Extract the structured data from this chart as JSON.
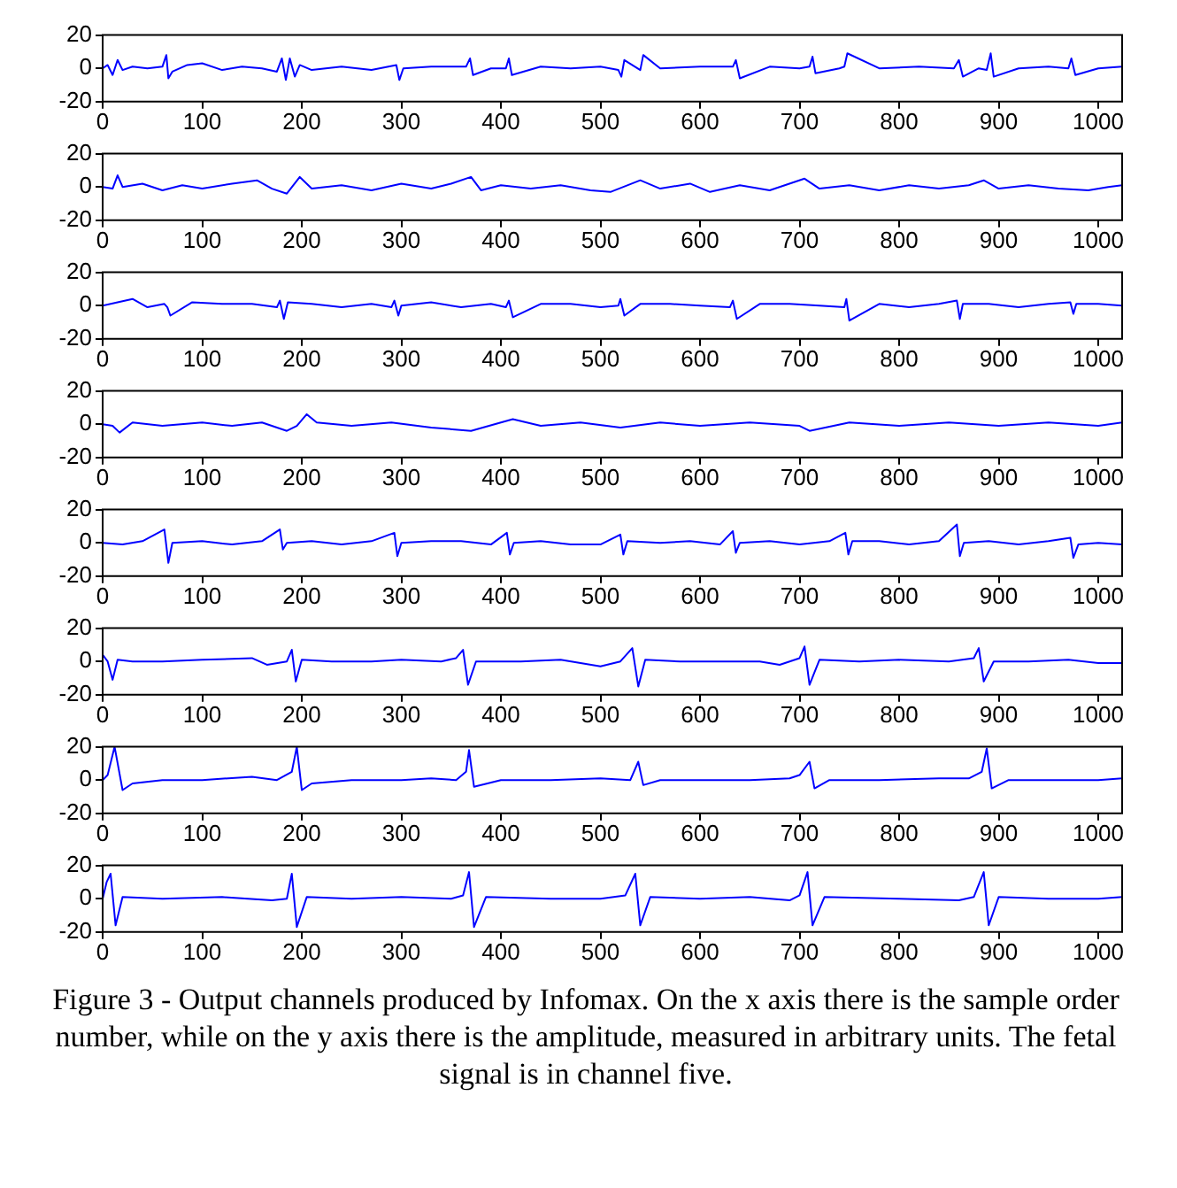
{
  "chart_data": [
    {
      "type": "line",
      "x": [
        0,
        5,
        10,
        15,
        20,
        30,
        45,
        60,
        64,
        66,
        70,
        85,
        100,
        120,
        140,
        160,
        175,
        180,
        184,
        188,
        193,
        198,
        210,
        240,
        270,
        295,
        298,
        302,
        330,
        365,
        369,
        372,
        390,
        405,
        408,
        411,
        440,
        470,
        500,
        518,
        521,
        524,
        540,
        543,
        560,
        600,
        633,
        636,
        640,
        670,
        700,
        710,
        713,
        716,
        740,
        745,
        748,
        780,
        820,
        855,
        860,
        864,
        880,
        888,
        892,
        895,
        920,
        950,
        970,
        973,
        977,
        1000,
        1024
      ],
      "values": [
        0,
        2,
        -4,
        5,
        -1,
        1,
        0,
        1,
        8,
        -6,
        -2,
        2,
        3,
        -1,
        1,
        0,
        -2,
        6,
        -7,
        6,
        -5,
        2,
        -1,
        1,
        -1,
        2,
        -7,
        0,
        1,
        1,
        6,
        -4,
        0,
        0,
        6,
        -4,
        1,
        0,
        1,
        -1,
        -5,
        5,
        -1,
        8,
        0,
        1,
        1,
        5,
        -6,
        1,
        0,
        1,
        7,
        -3,
        0,
        1,
        9,
        0,
        1,
        0,
        5,
        -5,
        0,
        -1,
        9,
        -5,
        0,
        1,
        0,
        6,
        -4,
        0,
        1
      ],
      "color": "#0000ff",
      "xlim": [
        0,
        1024
      ],
      "ylim": [
        -20,
        20
      ],
      "xticks": [
        0,
        100,
        200,
        300,
        400,
        500,
        600,
        700,
        800,
        900,
        1000
      ],
      "yticks": [
        -20,
        0,
        20
      ],
      "grid": false
    },
    {
      "type": "line",
      "x": [
        0,
        10,
        15,
        20,
        40,
        60,
        80,
        100,
        130,
        155,
        170,
        185,
        198,
        210,
        240,
        270,
        300,
        330,
        350,
        370,
        380,
        400,
        430,
        460,
        490,
        510,
        540,
        560,
        590,
        610,
        640,
        670,
        705,
        720,
        750,
        780,
        810,
        840,
        870,
        885,
        900,
        930,
        960,
        990,
        1010,
        1024
      ],
      "values": [
        0,
        -1,
        7,
        0,
        2,
        -2,
        1,
        -1,
        2,
        4,
        -1,
        -4,
        6,
        -1,
        1,
        -2,
        2,
        -1,
        2,
        6,
        -2,
        1,
        -1,
        1,
        -2,
        -3,
        4,
        -1,
        2,
        -3,
        1,
        -2,
        5,
        -1,
        1,
        -2,
        1,
        -1,
        1,
        4,
        -1,
        1,
        -1,
        -2,
        0,
        1
      ],
      "color": "#0000ff",
      "xlim": [
        0,
        1024
      ],
      "ylim": [
        -20,
        20
      ],
      "xticks": [
        0,
        100,
        200,
        300,
        400,
        500,
        600,
        700,
        800,
        900,
        1000
      ],
      "yticks": [
        -20,
        0,
        20
      ],
      "grid": false
    },
    {
      "type": "line",
      "x": [
        0,
        15,
        30,
        45,
        62,
        65,
        68,
        90,
        120,
        150,
        175,
        178,
        182,
        186,
        210,
        240,
        270,
        290,
        293,
        297,
        300,
        330,
        360,
        390,
        405,
        408,
        412,
        440,
        470,
        500,
        518,
        520,
        524,
        540,
        570,
        600,
        630,
        633,
        637,
        660,
        690,
        720,
        745,
        747,
        750,
        780,
        810,
        840,
        858,
        861,
        864,
        890,
        920,
        950,
        972,
        975,
        978,
        1000,
        1024
      ],
      "values": [
        0,
        2,
        4,
        -1,
        1,
        -1,
        -6,
        2,
        1,
        1,
        -1,
        3,
        -8,
        2,
        1,
        -1,
        1,
        -1,
        3,
        -6,
        0,
        2,
        -1,
        1,
        -1,
        3,
        -7,
        1,
        1,
        -1,
        0,
        4,
        -6,
        1,
        1,
        0,
        -1,
        3,
        -8,
        1,
        1,
        0,
        -1,
        4,
        -9,
        1,
        -1,
        1,
        3,
        -8,
        1,
        1,
        -1,
        1,
        2,
        -5,
        1,
        1,
        0
      ],
      "color": "#0000ff",
      "xlim": [
        0,
        1024
      ],
      "ylim": [
        -20,
        20
      ],
      "xticks": [
        0,
        100,
        200,
        300,
        400,
        500,
        600,
        700,
        800,
        900,
        1000
      ],
      "yticks": [
        -20,
        0,
        20
      ],
      "grid": false
    },
    {
      "type": "line",
      "x": [
        0,
        10,
        17,
        30,
        60,
        100,
        130,
        160,
        185,
        195,
        205,
        215,
        250,
        290,
        330,
        370,
        400,
        412,
        440,
        480,
        520,
        560,
        600,
        650,
        700,
        710,
        750,
        800,
        850,
        900,
        950,
        1000,
        1024
      ],
      "values": [
        0,
        -1,
        -5,
        1,
        -1,
        1,
        -1,
        1,
        -4,
        -1,
        6,
        1,
        -1,
        1,
        -2,
        -4,
        1,
        3,
        -1,
        1,
        -2,
        1,
        -1,
        1,
        -1,
        -4,
        1,
        -1,
        1,
        -1,
        1,
        -1,
        1
      ],
      "color": "#0000ff",
      "xlim": [
        0,
        1024
      ],
      "ylim": [
        -20,
        20
      ],
      "xticks": [
        0,
        100,
        200,
        300,
        400,
        500,
        600,
        700,
        800,
        900,
        1000
      ],
      "yticks": [
        -20,
        0,
        20
      ],
      "grid": false
    },
    {
      "type": "line",
      "x": [
        0,
        20,
        40,
        62,
        66,
        70,
        100,
        130,
        160,
        178,
        181,
        185,
        210,
        240,
        270,
        293,
        296,
        300,
        330,
        360,
        390,
        406,
        409,
        413,
        440,
        470,
        500,
        520,
        523,
        527,
        560,
        590,
        620,
        633,
        636,
        640,
        670,
        700,
        730,
        746,
        749,
        753,
        780,
        810,
        840,
        858,
        861,
        865,
        890,
        920,
        950,
        972,
        975,
        980,
        1000,
        1024
      ],
      "values": [
        0,
        -1,
        1,
        8,
        -12,
        0,
        1,
        -1,
        1,
        8,
        -4,
        0,
        1,
        -1,
        1,
        6,
        -8,
        0,
        1,
        1,
        -1,
        6,
        -7,
        0,
        1,
        -1,
        -1,
        5,
        -7,
        1,
        0,
        1,
        -1,
        7,
        -6,
        0,
        1,
        -1,
        1,
        6,
        -7,
        1,
        1,
        -1,
        1,
        11,
        -8,
        0,
        1,
        -1,
        1,
        3,
        -9,
        -1,
        0,
        -1
      ],
      "color": "#0000ff",
      "xlim": [
        0,
        1024
      ],
      "ylim": [
        -20,
        20
      ],
      "xticks": [
        0,
        100,
        200,
        300,
        400,
        500,
        600,
        700,
        800,
        900,
        1000
      ],
      "yticks": [
        -20,
        0,
        20
      ],
      "grid": false
    },
    {
      "type": "line",
      "x": [
        0,
        5,
        10,
        15,
        30,
        60,
        100,
        150,
        165,
        185,
        190,
        194,
        200,
        230,
        270,
        300,
        340,
        355,
        362,
        367,
        375,
        420,
        460,
        500,
        520,
        532,
        538,
        545,
        580,
        620,
        660,
        680,
        700,
        705,
        710,
        720,
        760,
        800,
        850,
        875,
        880,
        885,
        895,
        930,
        970,
        1000,
        1024
      ],
      "values": [
        4,
        0,
        -11,
        1,
        0,
        0,
        1,
        2,
        -2,
        0,
        7,
        -12,
        1,
        0,
        0,
        1,
        0,
        2,
        7,
        -14,
        0,
        0,
        1,
        -3,
        0,
        8,
        -15,
        1,
        0,
        0,
        0,
        -2,
        2,
        9,
        -14,
        1,
        0,
        1,
        0,
        2,
        8,
        -12,
        0,
        0,
        1,
        -1,
        -1
      ],
      "color": "#0000ff",
      "xlim": [
        0,
        1024
      ],
      "ylim": [
        -20,
        20
      ],
      "xticks": [
        0,
        100,
        200,
        300,
        400,
        500,
        600,
        700,
        800,
        900,
        1000
      ],
      "yticks": [
        -20,
        0,
        20
      ],
      "grid": false
    },
    {
      "type": "line",
      "x": [
        0,
        5,
        12,
        20,
        30,
        60,
        100,
        150,
        175,
        190,
        195,
        200,
        210,
        250,
        300,
        330,
        355,
        365,
        368,
        373,
        400,
        450,
        500,
        530,
        538,
        543,
        560,
        600,
        650,
        690,
        700,
        710,
        715,
        730,
        780,
        840,
        870,
        883,
        888,
        893,
        910,
        950,
        1000,
        1024
      ],
      "values": [
        0,
        3,
        20,
        -6,
        -2,
        0,
        0,
        2,
        0,
        5,
        20,
        -6,
        -2,
        0,
        0,
        1,
        0,
        5,
        18,
        -4,
        0,
        0,
        1,
        0,
        11,
        -3,
        0,
        0,
        0,
        1,
        3,
        11,
        -5,
        0,
        0,
        1,
        1,
        5,
        19,
        -5,
        0,
        0,
        0,
        1
      ],
      "color": "#0000ff",
      "xlim": [
        0,
        1024
      ],
      "ylim": [
        -20,
        20
      ],
      "xticks": [
        0,
        100,
        200,
        300,
        400,
        500,
        600,
        700,
        800,
        900,
        1000
      ],
      "yticks": [
        -20,
        0,
        20
      ],
      "grid": false
    },
    {
      "type": "line",
      "x": [
        0,
        4,
        8,
        13,
        20,
        60,
        120,
        170,
        185,
        190,
        195,
        205,
        250,
        300,
        350,
        362,
        368,
        373,
        385,
        450,
        500,
        525,
        535,
        540,
        550,
        600,
        650,
        690,
        700,
        708,
        713,
        725,
        800,
        860,
        875,
        885,
        890,
        900,
        950,
        1000,
        1024
      ],
      "values": [
        0,
        10,
        15,
        -16,
        1,
        0,
        1,
        -1,
        0,
        15,
        -17,
        1,
        0,
        1,
        0,
        2,
        16,
        -17,
        1,
        0,
        0,
        2,
        15,
        -16,
        1,
        0,
        1,
        -1,
        2,
        16,
        -16,
        1,
        0,
        -1,
        1,
        16,
        -16,
        1,
        0,
        0,
        1
      ],
      "color": "#0000ff",
      "xlim": [
        0,
        1024
      ],
      "ylim": [
        -20,
        20
      ],
      "xticks": [
        0,
        100,
        200,
        300,
        400,
        500,
        600,
        700,
        800,
        900,
        1000
      ],
      "yticks": [
        -20,
        0,
        20
      ],
      "grid": false,
      "annotations": [
        "Figure 3 - Output channels produced by Infomax. On the x axis there is the sample order number, while on the y axis there is the amplitude, measured in arbitrary units. The fetal signal is in channel five."
      ]
    }
  ]
}
